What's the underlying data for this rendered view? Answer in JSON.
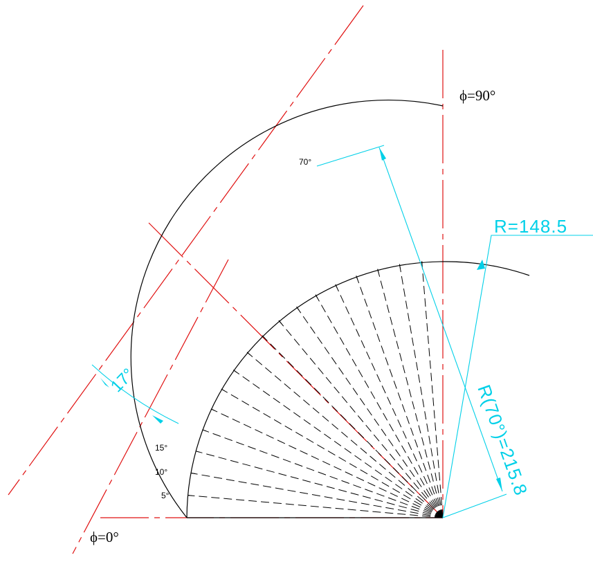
{
  "drawing": {
    "angle_start_label": "ϕ=0°",
    "angle_end_label": "ϕ=90°",
    "tick_labels": [
      "5°",
      "10°",
      "15°",
      "70°"
    ],
    "dim_small_radius": "R=148.5",
    "dim_large_radius": "R(70°)=215.8",
    "dim_angle": "17°"
  },
  "colors": {
    "geometry": "#000000",
    "centerline": "#e01010",
    "dimension": "#00d0e8",
    "background": "#ffffff"
  }
}
